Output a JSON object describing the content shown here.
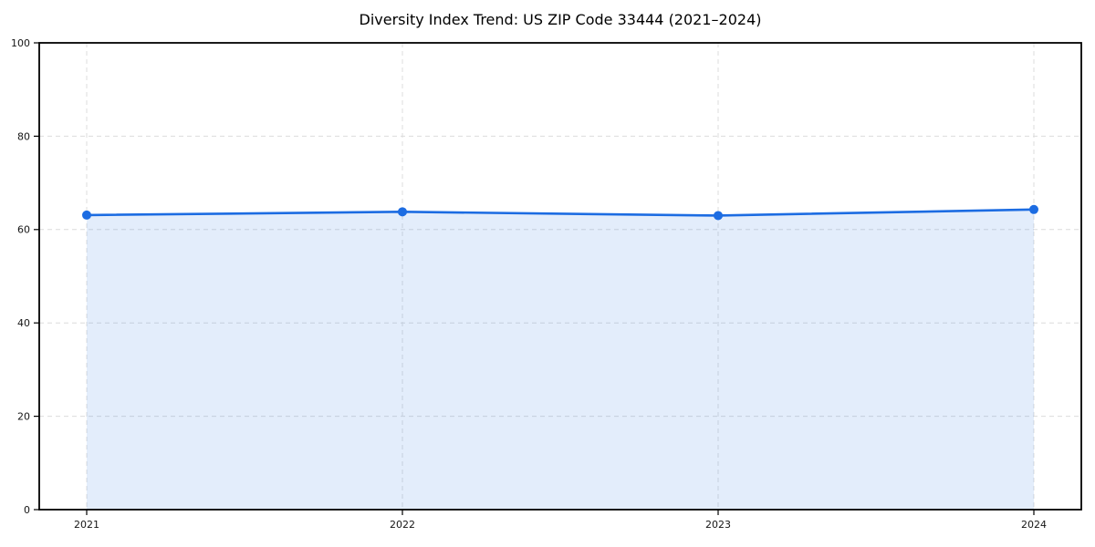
{
  "chart_data": {
    "type": "area",
    "title": "Diversity Index Trend: US ZIP Code 33444 (2021–2024)",
    "categories": [
      "2021",
      "2022",
      "2023",
      "2024"
    ],
    "series": [
      {
        "name": "Diversity Index",
        "values": [
          63.1,
          63.8,
          63.0,
          64.3
        ]
      }
    ],
    "xlabel": "",
    "ylabel": "",
    "ylim": [
      0,
      100
    ],
    "yticks": [
      0,
      20,
      40,
      60,
      80,
      100
    ],
    "grid": true,
    "legend": "none",
    "line_color": "#1c6ce2",
    "fill_color": "rgba(28, 108, 226, 0.12)",
    "grid_color": "#dcdcdc",
    "axis_color": "#000000",
    "tick_label_color": "#151515",
    "marker": "circle"
  }
}
